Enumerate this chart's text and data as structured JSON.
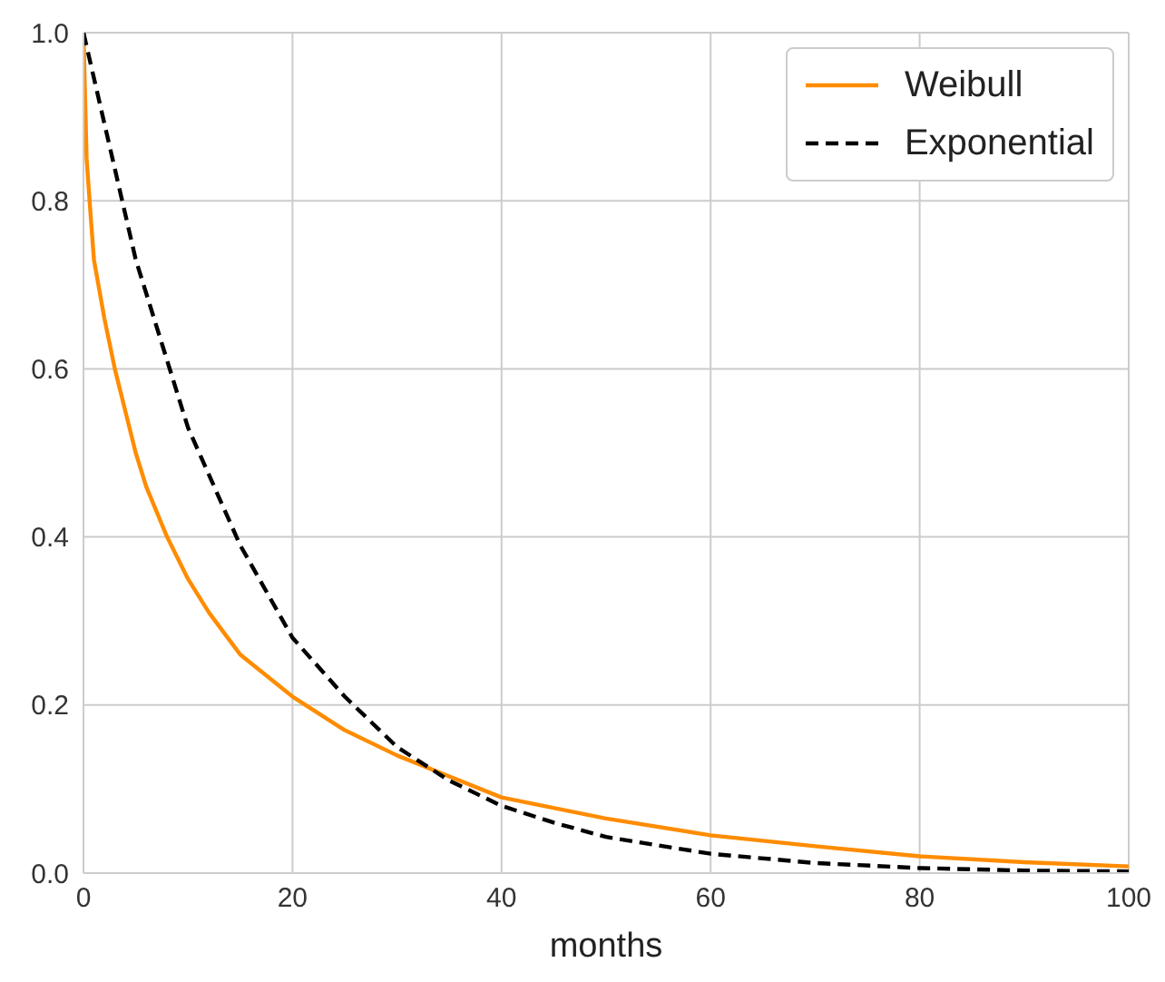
{
  "chart_data": {
    "type": "line",
    "xlabel": "months",
    "xlim": [
      0,
      100
    ],
    "xticks": [
      0,
      20,
      40,
      60,
      80,
      100
    ],
    "ylim": [
      0,
      1
    ],
    "yticks": [
      {
        "value": 0,
        "label": "0.0"
      },
      {
        "value": 0.2,
        "label": "0.2"
      },
      {
        "value": 0.4,
        "label": "0.4"
      },
      {
        "value": 0.6,
        "label": "0.6"
      },
      {
        "value": 0.8,
        "label": "0.8"
      },
      {
        "value": 1,
        "label": "1.0"
      }
    ],
    "grid": true,
    "legend": "top right",
    "marker": "none",
    "series": [
      {
        "name": "Weibull",
        "color": "#ff8c00",
        "line_style": "solid",
        "x": [
          0,
          0.3,
          0.7,
          1,
          2,
          3,
          4,
          5,
          6,
          8,
          10,
          12,
          15,
          20,
          25,
          30,
          35,
          40,
          50,
          60,
          70,
          80,
          90,
          100
        ],
        "values": [
          1,
          0.85,
          0.78,
          0.73,
          0.66,
          0.6,
          0.55,
          0.5,
          0.46,
          0.4,
          0.35,
          0.31,
          0.26,
          0.21,
          0.17,
          0.14,
          0.115,
          0.09,
          0.065,
          0.045,
          0.032,
          0.02,
          0.013,
          0.008
        ]
      },
      {
        "name": "Exponential",
        "color": "#000000",
        "line_style": "dashed",
        "x": [
          0,
          5,
          10,
          15,
          20,
          25,
          30,
          35,
          40,
          45,
          50,
          60,
          70,
          80,
          90,
          100
        ],
        "values": [
          1,
          0.73,
          0.53,
          0.39,
          0.28,
          0.21,
          0.15,
          0.11,
          0.08,
          0.06,
          0.043,
          0.023,
          0.012,
          0.006,
          0.003,
          0.002
        ]
      }
    ]
  }
}
